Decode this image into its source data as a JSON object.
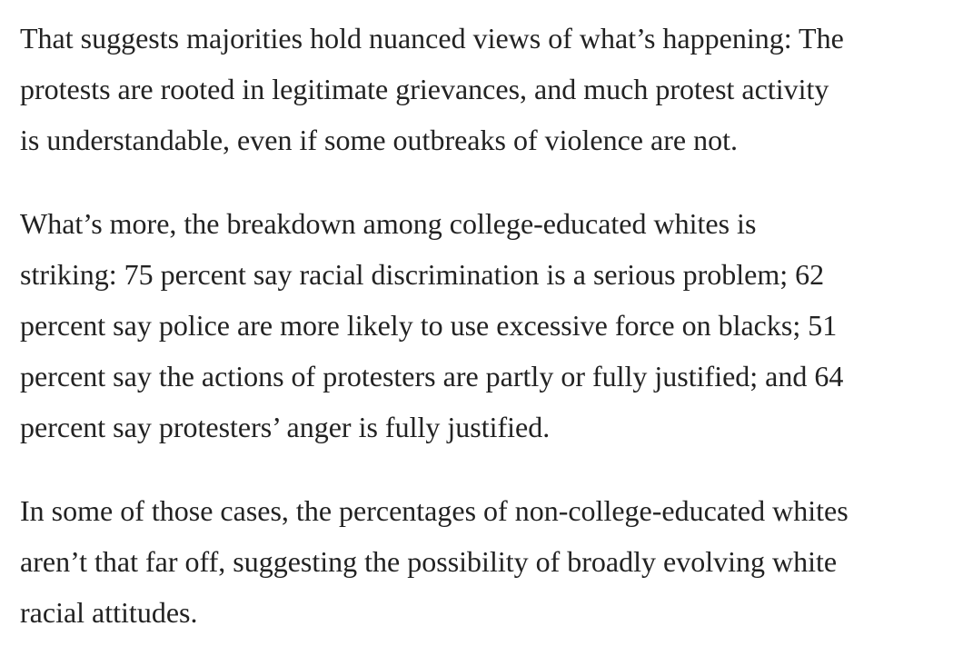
{
  "paragraphs": [
    {
      "lines": [
        "That suggests majorities hold nuanced views of what’s happening: The",
        "protests are rooted in legitimate grievances, and much protest activity",
        "is understandable, even if some outbreaks of violence are not."
      ]
    },
    {
      "lines": [
        "What’s more, the breakdown among college-educated whites is",
        "striking: 75 percent say racial discrimination is a serious problem; 62",
        "percent say police are more likely to use excessive force on blacks; 51",
        "percent say the actions of protesters are partly or fully justified; and 64",
        "percent say protesters’ anger is fully justified."
      ]
    },
    {
      "lines": [
        "In some of those cases, the percentages of non-college-educated whites",
        "aren’t that far off, suggesting the possibility of broadly evolving white",
        "racial attitudes."
      ]
    }
  ]
}
